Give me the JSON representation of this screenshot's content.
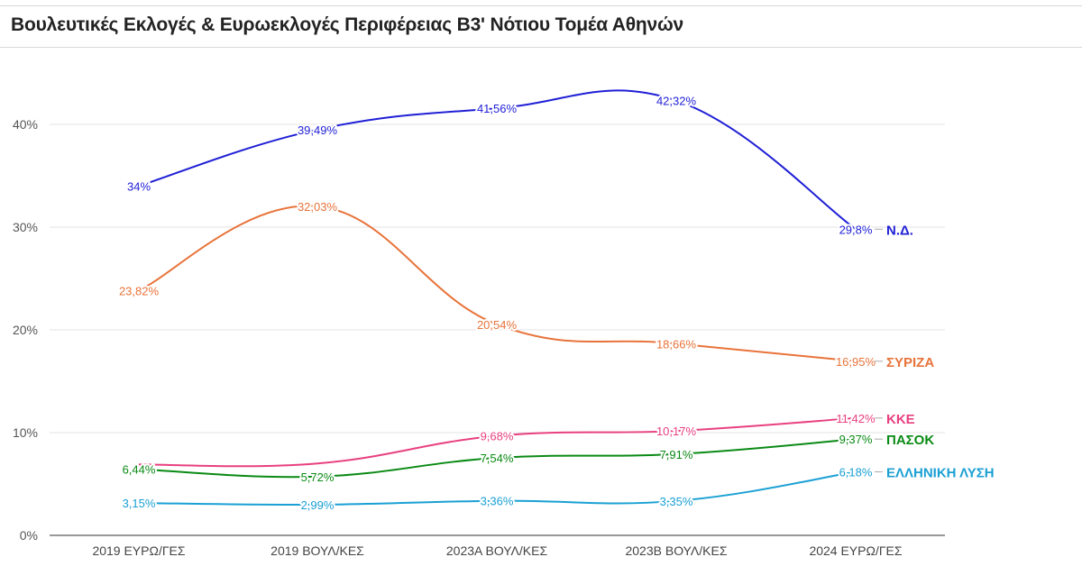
{
  "chart_data": {
    "type": "line",
    "title": "Βουλευτικές Εκλογές & Ευρωεκλογές Περιφέρειας Β3' Νότιου Τομέα Αθηνών",
    "xlabel": "",
    "ylabel": "",
    "categories": [
      "2019 ΕΥΡΩ/ΓΕΣ",
      "2019 ΒΟΥΛ/ΚΕΣ",
      "2023Α ΒΟΥΛ/ΚΕΣ",
      "2023Β ΒΟΥΛ/ΚΕΣ",
      "2024 ΕΥΡΩ/ΓΕΣ"
    ],
    "ylim": [
      0,
      45
    ],
    "yticks": [
      0,
      10,
      20,
      30,
      40
    ],
    "ytick_labels": [
      "0%",
      "10%",
      "20%",
      "30%",
      "40%"
    ],
    "grid": true,
    "legend": "inline-right",
    "series": [
      {
        "name": "Ν.Δ.",
        "color": "#1f1fd6",
        "values": [
          34,
          39.49,
          41.56,
          42.32,
          29.8
        ],
        "labels": [
          "34%",
          "39,49%",
          "41,56%",
          "42,32%",
          "29,8%"
        ]
      },
      {
        "name": "ΣΥΡΙΖΑ",
        "color": "#e8733a",
        "values": [
          23.82,
          32.03,
          20.54,
          18.66,
          16.95
        ],
        "labels": [
          "23,82%",
          "32,03%",
          "20,54%",
          "18,66%",
          "16,95%"
        ]
      },
      {
        "name": "ΚΚΕ",
        "color": "#e8407f",
        "values": [
          null,
          null,
          9.68,
          10.17,
          11.42
        ],
        "labels": [
          null,
          null,
          "9,68%",
          "10,17%",
          "11,42%"
        ]
      },
      {
        "name": "ΠΑΣΟΚ",
        "color": "#0a8a14",
        "values": [
          6.44,
          5.72,
          7.54,
          7.91,
          9.37
        ],
        "labels": [
          "6,44%",
          "5,72%",
          "7,54%",
          "7,91%",
          "9,37%"
        ]
      },
      {
        "name": "ΕΛΛΗΝΙΚΗ ΛΥΣΗ",
        "color": "#1aa0d4",
        "values": [
          3.15,
          2.99,
          3.36,
          3.35,
          6.18
        ],
        "labels": [
          "3,15%",
          "2,99%",
          "3,36%",
          "3,35%",
          "6,18%"
        ]
      }
    ]
  }
}
